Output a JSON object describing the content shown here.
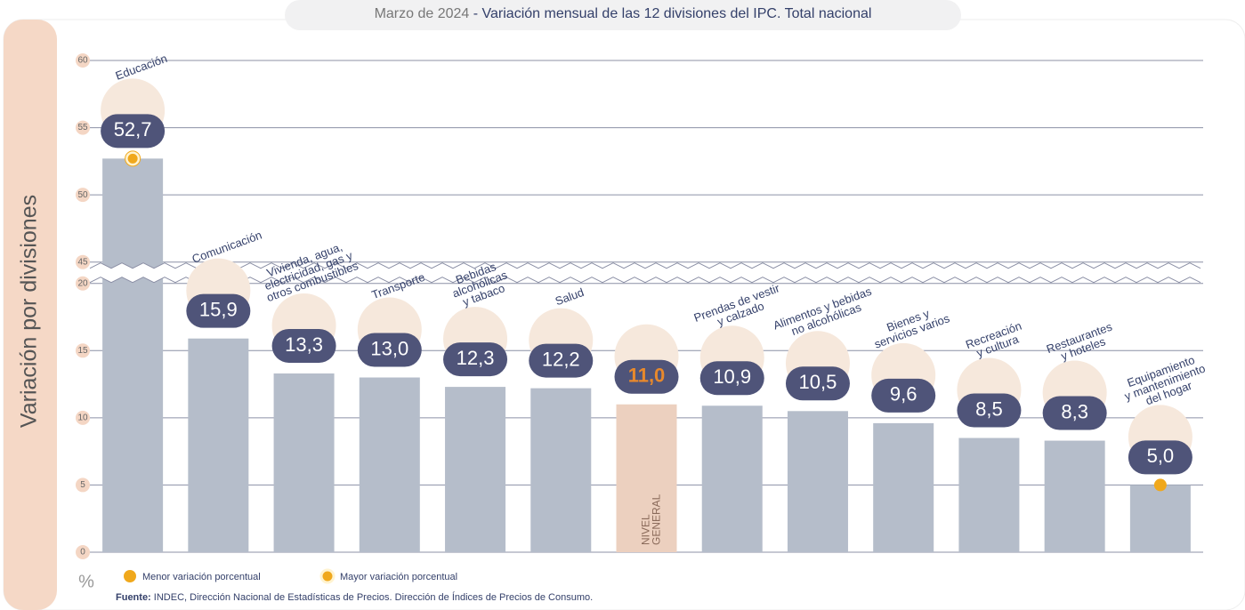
{
  "chart_data": {
    "type": "bar",
    "period": "Marzo de 2024",
    "title": "- Variación mensual de las 12 divisiones del IPC. Total nacional",
    "y_title": "Variación por divisiones",
    "y_unit": "%",
    "categories": [
      "Educación",
      "Comunicación",
      "Vivienda, agua,\nelectricidad, gas y\notros combustibles",
      "Transporte",
      "Bebidas\nalcohólicas\ny tabaco",
      "Salud",
      "NIVEL\nGENERAL",
      "Prendas de vestir\ny calzado",
      "Alimentos y bebidas\nno alcohólicas",
      "Bienes y\nservicios varios",
      "Recreación\ny cultura",
      "Restaurantes\ny hoteles",
      "Equipamiento\ny mantenimiento\ndel hogar"
    ],
    "values": [
      52.7,
      15.9,
      13.3,
      13.0,
      12.3,
      12.2,
      11.0,
      10.9,
      10.5,
      9.6,
      8.5,
      8.3,
      5.0
    ],
    "value_labels": [
      "52,7",
      "15,9",
      "13,3",
      "13,0",
      "12,3",
      "12,2",
      "11,0",
      "10,9",
      "10,5",
      "9,6",
      "8,5",
      "8,3",
      "5,0"
    ],
    "color": "#b5bdca",
    "highlight": {
      "index": 6,
      "color": "#ecd0bf",
      "label_color": "#e8892c"
    },
    "ylim": [
      0,
      60
    ],
    "yticks": [
      0,
      5,
      10,
      15,
      20,
      45,
      50,
      55,
      60
    ],
    "axis_break": [
      20,
      45
    ],
    "grid": true,
    "legend": [
      {
        "name": "Menor variación porcentual",
        "color": "#f0a81c",
        "index": 12,
        "ring": false
      },
      {
        "name": "Mayor variación porcentual",
        "color": "#f0a81c",
        "index": 0,
        "ring": true
      }
    ],
    "source_label": "Fuente:",
    "source": "INDEC, Dirección Nacional de Estadísticas de Precios. Dirección de Índices de Precios de Consumo."
  }
}
